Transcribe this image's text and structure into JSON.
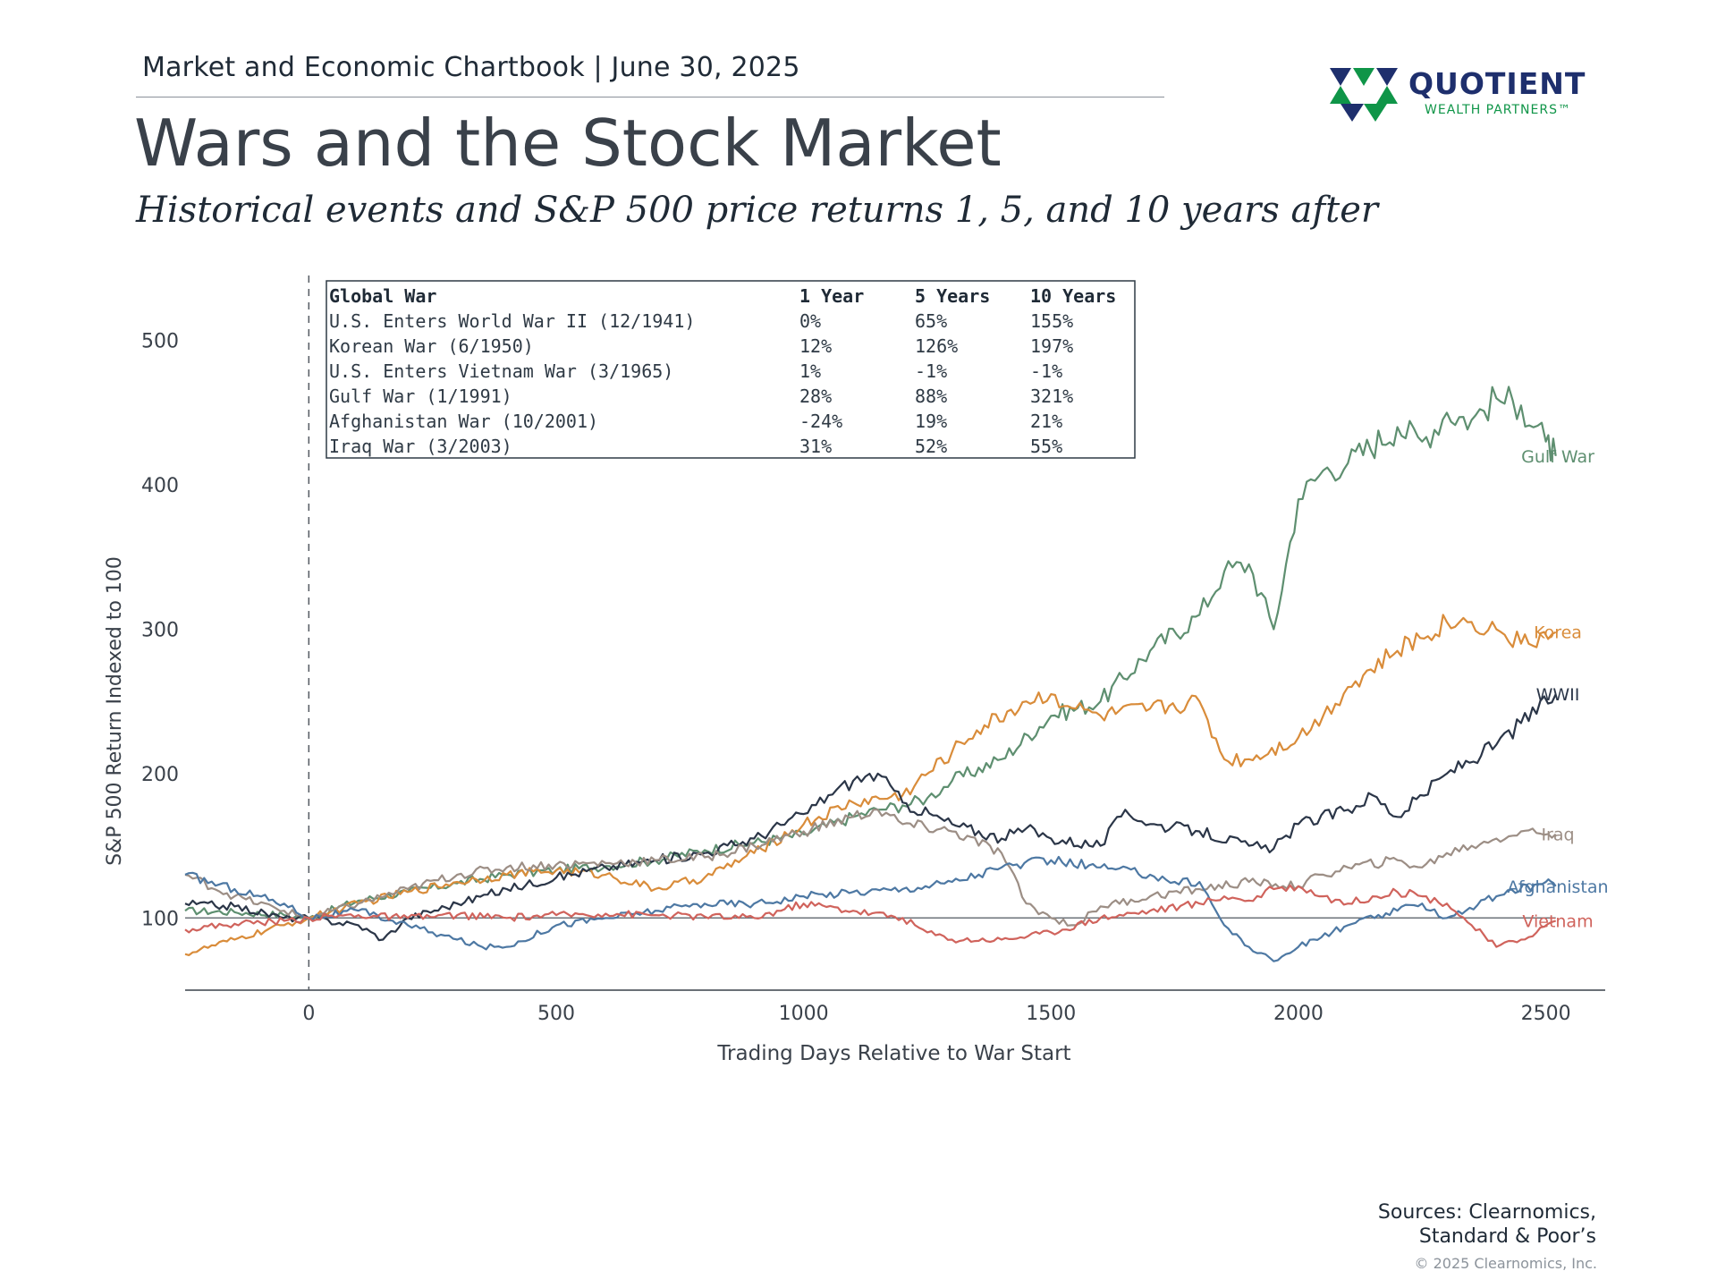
{
  "header": {
    "kicker": "Market and Economic Chartbook | June 30, 2025",
    "title": "Wars and the Stock Market",
    "subtitle": "Historical events and S&P 500 price returns 1, 5, and 10 years after"
  },
  "logo": {
    "name": "QUOTIENT",
    "tagline": "WEALTH PARTNERS™",
    "colors": {
      "navy": "#1e2f6d",
      "green": "#0f9548"
    }
  },
  "footer": {
    "sources_line1": "Sources: Clearnomics,",
    "sources_line2": "Standard & Poor’s",
    "copyright": "© 2025 Clearnomics, Inc."
  },
  "chart_data": {
    "type": "line",
    "title": "",
    "xlabel": "Trading Days Relative to War Start",
    "ylabel": "S&P 500 Return Indexed to 100",
    "xlim": [
      -250,
      2620
    ],
    "ylim": [
      50,
      550
    ],
    "xticks": [
      0,
      500,
      1000,
      1500,
      2000,
      2500
    ],
    "yticks": [
      100,
      200,
      300,
      400,
      500
    ],
    "reference_line_y": 100,
    "war_start_marker_x": 0,
    "legend": "direct labels at line ends, right",
    "series": [
      {
        "name": "Gulf War",
        "color": "#5e8f70",
        "x": [
          -250,
          -150,
          -50,
          0,
          100,
          200,
          300,
          400,
          500,
          600,
          700,
          800,
          900,
          1000,
          1100,
          1150,
          1200,
          1250,
          1300,
          1400,
          1500,
          1600,
          1700,
          1800,
          1850,
          1900,
          1950,
          2000,
          2050,
          2100,
          2200,
          2250,
          2300,
          2350,
          2400,
          2450,
          2500,
          2520
        ],
        "y": [
          105,
          104,
          102,
          100,
          112,
          118,
          124,
          130,
          133,
          136,
          140,
          147,
          152,
          158,
          170,
          175,
          178,
          183,
          195,
          210,
          240,
          250,
          285,
          310,
          340,
          345,
          300,
          390,
          410,
          415,
          440,
          430,
          450,
          445,
          460,
          455,
          430,
          420
        ]
      },
      {
        "name": "Korea",
        "color": "#d98c3a",
        "x": [
          -250,
          -150,
          -50,
          0,
          100,
          200,
          300,
          400,
          500,
          600,
          700,
          800,
          900,
          1000,
          1100,
          1200,
          1300,
          1350,
          1450,
          1500,
          1550,
          1600,
          1700,
          1800,
          1850,
          1900,
          2000,
          2050,
          2100,
          2200,
          2300,
          2350,
          2400,
          2450,
          2520
        ],
        "y": [
          75,
          85,
          95,
          100,
          110,
          118,
          125,
          130,
          133,
          130,
          120,
          128,
          145,
          165,
          180,
          185,
          215,
          230,
          250,
          255,
          245,
          240,
          245,
          250,
          210,
          210,
          225,
          240,
          260,
          285,
          305,
          305,
          300,
          290,
          298
        ]
      },
      {
        "name": "WWII",
        "color": "#2b3648",
        "x": [
          -250,
          -150,
          -50,
          0,
          100,
          150,
          200,
          300,
          400,
          500,
          600,
          700,
          800,
          900,
          1000,
          1050,
          1100,
          1150,
          1200,
          1300,
          1400,
          1450,
          1500,
          1600,
          1650,
          1700,
          1800,
          1900,
          1950,
          2000,
          2100,
          2150,
          2200,
          2300,
          2400,
          2450,
          2520
        ],
        "y": [
          110,
          108,
          100,
          100,
          95,
          85,
          100,
          110,
          120,
          128,
          135,
          140,
          145,
          155,
          172,
          185,
          195,
          200,
          180,
          165,
          155,
          162,
          155,
          150,
          175,
          165,
          160,
          150,
          148,
          165,
          175,
          185,
          170,
          200,
          220,
          235,
          255
        ]
      },
      {
        "name": "Iraq",
        "color": "#9c8e85",
        "x": [
          -250,
          -150,
          -50,
          0,
          100,
          200,
          300,
          400,
          500,
          600,
          700,
          800,
          900,
          1000,
          1100,
          1150,
          1200,
          1300,
          1400,
          1450,
          1500,
          1550,
          1600,
          1700,
          1800,
          1900,
          2000,
          2050,
          2100,
          2200,
          2250,
          2300,
          2350,
          2400,
          2450,
          2520
        ],
        "y": [
          130,
          115,
          105,
          100,
          110,
          120,
          130,
          135,
          137,
          138,
          140,
          142,
          150,
          160,
          170,
          175,
          165,
          160,
          145,
          110,
          100,
          95,
          108,
          115,
          120,
          125,
          122,
          130,
          135,
          140,
          135,
          145,
          150,
          155,
          160,
          158
        ]
      },
      {
        "name": "Afghanistan",
        "color": "#4d78a3",
        "x": [
          -250,
          -150,
          -50,
          0,
          100,
          200,
          250,
          300,
          350,
          400,
          500,
          600,
          700,
          800,
          900,
          1000,
          1100,
          1200,
          1300,
          1400,
          1500,
          1600,
          1700,
          1750,
          1800,
          1850,
          1900,
          1950,
          2000,
          2100,
          2200,
          2250,
          2300,
          2400,
          2500,
          2520
        ],
        "y": [
          130,
          120,
          110,
          100,
          105,
          95,
          90,
          85,
          80,
          80,
          95,
          100,
          105,
          110,
          110,
          115,
          118,
          120,
          125,
          135,
          140,
          135,
          130,
          125,
          125,
          95,
          80,
          70,
          80,
          95,
          105,
          110,
          100,
          115,
          125,
          122
        ]
      },
      {
        "name": "Vietnam",
        "color": "#d0635c",
        "x": [
          -250,
          -150,
          -50,
          0,
          100,
          200,
          300,
          400,
          500,
          600,
          700,
          800,
          900,
          1000,
          1100,
          1200,
          1250,
          1300,
          1400,
          1500,
          1600,
          1700,
          1800,
          1850,
          1900,
          1950,
          2000,
          2050,
          2100,
          2150,
          2200,
          2250,
          2300,
          2350,
          2400,
          2450,
          2520
        ],
        "y": [
          92,
          96,
          98,
          100,
          102,
          100,
          102,
          100,
          102,
          103,
          102,
          101,
          100,
          110,
          105,
          100,
          90,
          85,
          85,
          90,
          100,
          105,
          110,
          115,
          112,
          120,
          122,
          115,
          110,
          115,
          118,
          115,
          110,
          95,
          80,
          85,
          98
        ]
      }
    ],
    "table": {
      "headers": [
        "Global War",
        "1 Year",
        "5 Years",
        "10 Years"
      ],
      "rows": [
        [
          "U.S. Enters World War II (12/1941)",
          "0%",
          "65%",
          "155%"
        ],
        [
          "Korean War (6/1950)",
          "12%",
          "126%",
          "197%"
        ],
        [
          "U.S. Enters Vietnam War (3/1965)",
          "1%",
          "-1%",
          "-1%"
        ],
        [
          "Gulf War (1/1991)",
          "28%",
          "88%",
          "321%"
        ],
        [
          "Afghanistan War (10/2001)",
          "-24%",
          "19%",
          "21%"
        ],
        [
          "Iraq War (3/2003)",
          "31%",
          "52%",
          "55%"
        ]
      ]
    }
  }
}
